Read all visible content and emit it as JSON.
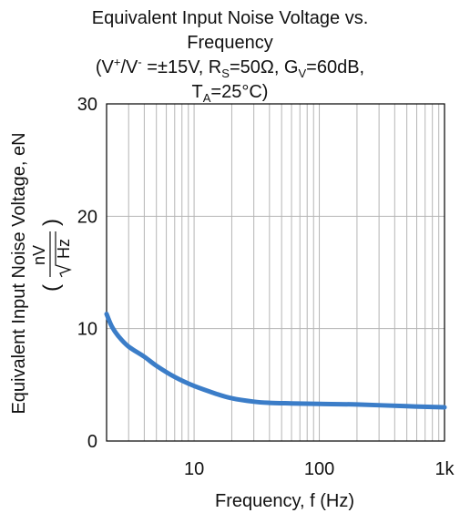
{
  "chart_data": {
    "type": "line",
    "title": "Equivalent Input Noise Voltage vs. Frequency",
    "conditions": {
      "open": "(",
      "v_pre": "V",
      "v_plus": "+",
      "slash": "/V",
      "v_minus": "-",
      "supply": " =±15V, R",
      "rs_sub": "S",
      "rs_val": "=50Ω, G",
      "gv_sub": "V",
      "gv_val": "=60dB,",
      "ta_pre": "T",
      "ta_sub": "A",
      "ta_val": "=25°C)"
    },
    "title_lines": [
      "Equivalent Input Noise Voltage vs.",
      "Frequency"
    ],
    "xlabel": "Frequency, f (Hz)",
    "ylabel": "Equivalent Input Noise Voltage, eN",
    "ylabel_unit_num": "nV",
    "ylabel_unit_den": "Hz",
    "xscale": "log",
    "xlim": [
      2,
      1000
    ],
    "ylim": [
      0,
      30
    ],
    "grid": true,
    "x_ticks": [
      {
        "value": 10,
        "label": "10"
      },
      {
        "value": 100,
        "label": "100"
      },
      {
        "value": 1000,
        "label": "1k"
      }
    ],
    "y_ticks": [
      {
        "value": 0,
        "label": "0"
      },
      {
        "value": 10,
        "label": "10"
      },
      {
        "value": 20,
        "label": "20"
      },
      {
        "value": 30,
        "label": "30"
      }
    ],
    "series": [
      {
        "color": "#3b7dc8",
        "x": [
          2.0,
          2.2,
          2.5,
          3,
          4,
          5,
          7,
          10,
          15,
          20,
          30,
          40,
          60,
          100,
          200,
          500,
          1000
        ],
        "y": [
          11.3,
          10.2,
          9.3,
          8.4,
          7.5,
          6.7,
          5.7,
          4.9,
          4.2,
          3.8,
          3.5,
          3.4,
          3.35,
          3.3,
          3.25,
          3.1,
          3.0
        ]
      }
    ]
  }
}
